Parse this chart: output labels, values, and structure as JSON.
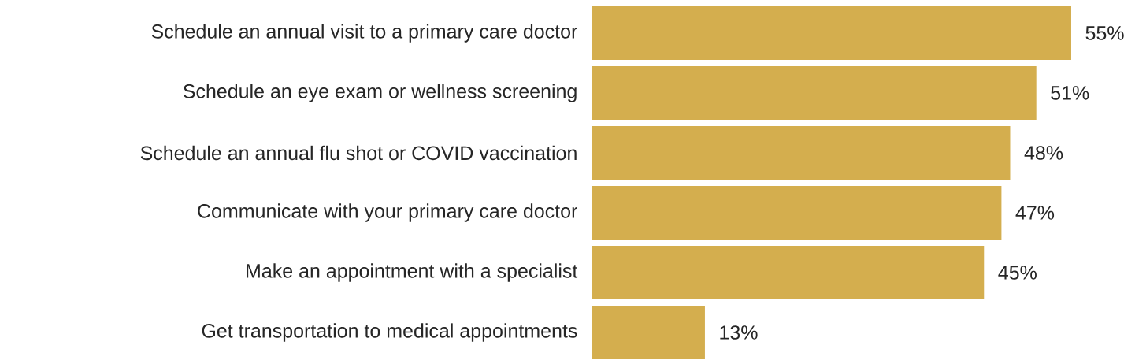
{
  "chart_data": {
    "type": "bar",
    "orientation": "horizontal",
    "categories": [
      "Schedule an annual visit to a primary care doctor",
      "Schedule an eye exam or wellness screening",
      "Schedule an annual flu shot or COVID vaccination",
      "Communicate with your primary care doctor",
      "Make an appointment with a specialist",
      "Get transportation to medical appointments"
    ],
    "values": [
      55,
      51,
      48,
      47,
      45,
      13
    ],
    "value_labels": [
      "55%",
      "51%",
      "48%",
      "47%",
      "45%",
      "13%"
    ],
    "color": "#d4ae4e"
  }
}
